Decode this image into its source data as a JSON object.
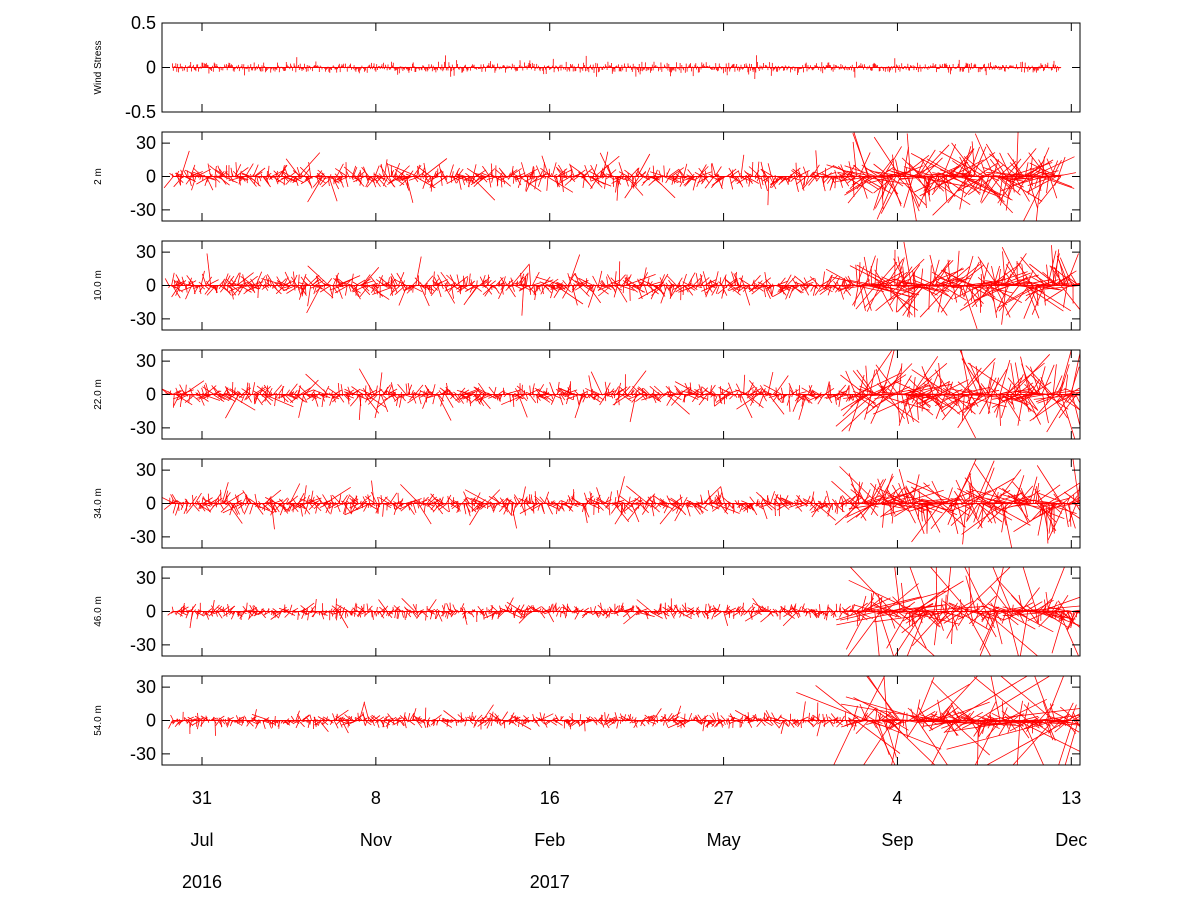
{
  "chart_data": {
    "type": "stick-vector",
    "color": "#ff0000",
    "x_axis": {
      "ticks": [
        {
          "date": "2016-07-31",
          "day": "31",
          "month": "Jul",
          "year": "2016"
        },
        {
          "date": "2016-11-08",
          "day": "8",
          "month": "Nov",
          "year": ""
        },
        {
          "date": "2017-02-16",
          "day": "16",
          "month": "Feb",
          "year": "2017"
        },
        {
          "date": "2017-05-27",
          "day": "27",
          "month": "May",
          "year": ""
        },
        {
          "date": "2017-09-04",
          "day": "4",
          "month": "Sep",
          "year": ""
        },
        {
          "date": "2017-12-13",
          "day": "13",
          "month": "Dec",
          "year": ""
        }
      ],
      "range": [
        "2016-07-08",
        "2017-12-18"
      ]
    },
    "panels": [
      {
        "ylabel": "Wind Stress",
        "ylim": [
          -0.5,
          0.5
        ],
        "yticks": [
          "0.5",
          "0",
          "-0.5"
        ],
        "typical": 0.05,
        "peak": 0.2,
        "data_start": "2016-07-14",
        "data_end": "2017-12-07"
      },
      {
        "ylabel": "2  m",
        "ylim": [
          -40,
          40
        ],
        "yticks": [
          "30",
          "0",
          "-30"
        ],
        "typical": 10,
        "peak": 40,
        "data_start": "2016-07-14",
        "data_end": "2017-12-07"
      },
      {
        "ylabel": "10.0  m",
        "ylim": [
          -40,
          40
        ],
        "yticks": [
          "30",
          "0",
          "-30"
        ],
        "typical": 10,
        "peak": 35,
        "data_start": "2016-07-12",
        "data_end": "2017-12-18"
      },
      {
        "ylabel": "22.0  m",
        "ylim": [
          -40,
          40
        ],
        "yticks": [
          "30",
          "0",
          "-30"
        ],
        "typical": 9,
        "peak": 40,
        "data_start": "2016-07-12",
        "data_end": "2017-12-18"
      },
      {
        "ylabel": "34.0  m",
        "ylim": [
          -40,
          40
        ],
        "yticks": [
          "30",
          "0",
          "-30"
        ],
        "typical": 9,
        "peak": 40,
        "data_start": "2016-07-12",
        "data_end": "2017-12-18"
      },
      {
        "ylabel": "46.0  m",
        "ylim": [
          -40,
          40
        ],
        "yticks": [
          "30",
          "0",
          "-30"
        ],
        "typical": 6,
        "peak": 60,
        "data_start": "2016-07-14",
        "data_end": "2017-12-18"
      },
      {
        "ylabel": "54.0  m",
        "ylim": [
          -40,
          40
        ],
        "yticks": [
          "30",
          "0",
          "-30"
        ],
        "typical": 6,
        "peak": 80,
        "data_start": "2016-07-14",
        "data_end": "2017-12-18"
      }
    ]
  }
}
